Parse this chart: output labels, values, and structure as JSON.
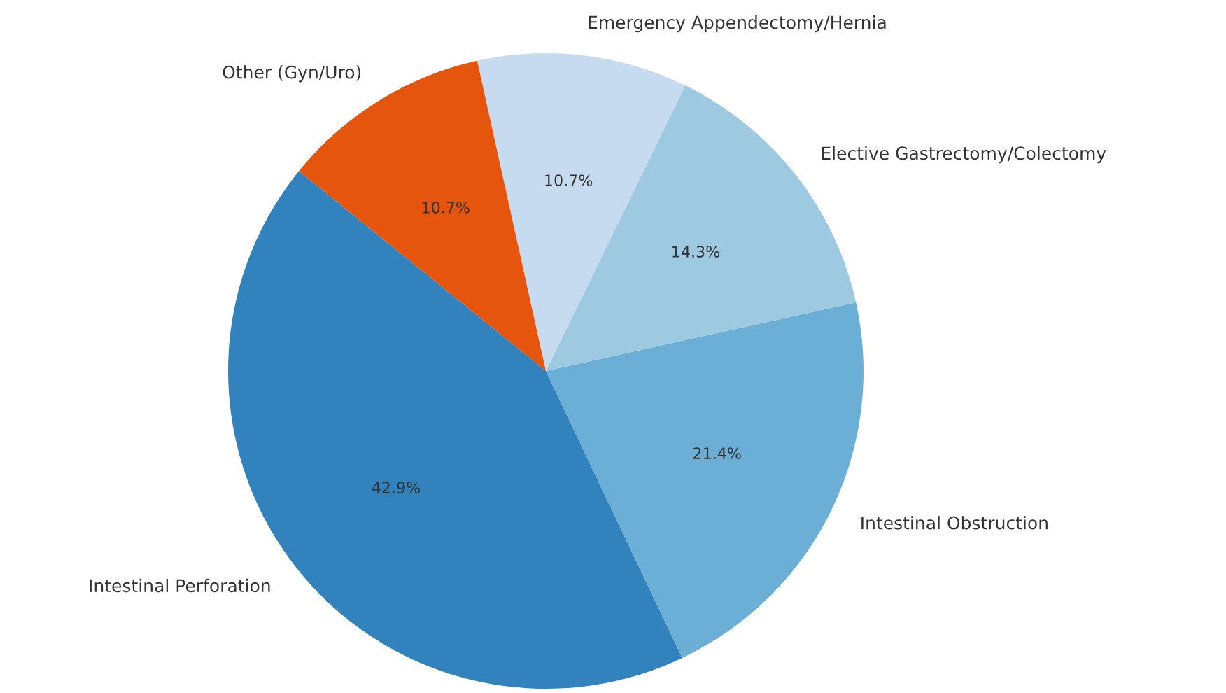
{
  "chart_data": {
    "type": "pie",
    "categories": [
      "Intestinal Perforation",
      "Intestinal Obstruction",
      "Elective Gastrectomy/Colectomy",
      "Emergency Appendectomy/Hernia",
      "Other (Gyn/Uro)"
    ],
    "values": [
      42.9,
      21.4,
      14.3,
      10.7,
      10.7
    ],
    "colors": [
      "#3182bd",
      "#6baed6",
      "#9ecae1",
      "#c6dbef",
      "#e6550d"
    ],
    "value_labels": [
      "42.9%",
      "21.4%",
      "14.3%",
      "10.7%",
      "10.7%"
    ]
  }
}
